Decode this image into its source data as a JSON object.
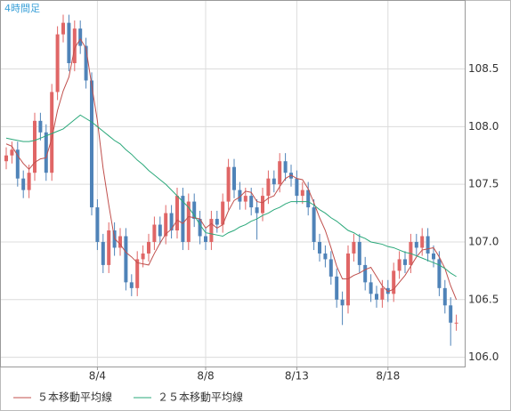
{
  "chart_data": {
    "type": "candlestick",
    "title": "4時間足",
    "categories": [
      null,
      null,
      null,
      null,
      null,
      null,
      null,
      null,
      null,
      null,
      null,
      null,
      null,
      null,
      null,
      null,
      "8/4",
      null,
      null,
      null,
      null,
      null,
      null,
      null,
      null,
      null,
      null,
      null,
      null,
      null,
      null,
      null,
      null,
      null,
      null,
      "8/8",
      null,
      null,
      null,
      null,
      null,
      null,
      null,
      null,
      null,
      null,
      null,
      null,
      null,
      null,
      null,
      "8/13",
      null,
      null,
      null,
      null,
      null,
      null,
      null,
      null,
      null,
      null,
      null,
      null,
      null,
      null,
      null,
      "8/18",
      null,
      null,
      null,
      null,
      null,
      null,
      null,
      null,
      null,
      null,
      null,
      null
    ],
    "open": [
      107.7,
      107.75,
      107.8,
      107.55,
      107.45,
      107.6,
      108.05,
      107.95,
      107.6,
      108.3,
      108.8,
      108.9,
      108.55,
      108.85,
      108.7,
      108.4,
      107.3,
      107.0,
      106.8,
      107.1,
      106.95,
      107.05,
      106.65,
      106.6,
      106.85,
      106.9,
      107.0,
      107.15,
      107.05,
      107.25,
      107.1,
      107.4,
      107.0,
      107.35,
      107.2,
      107.05,
      107.0,
      107.2,
      107.15,
      107.35,
      107.65,
      107.45,
      107.35,
      107.4,
      107.3,
      107.25,
      107.4,
      107.55,
      107.5,
      107.7,
      107.6,
      107.55,
      107.4,
      107.45,
      107.3,
      107.0,
      106.9,
      106.85,
      106.7,
      106.5,
      106.45,
      106.9,
      107.0,
      106.8,
      106.65,
      106.55,
      106.5,
      106.6,
      106.55,
      106.75,
      106.85,
      106.8,
      107.0,
      106.95,
      107.05,
      106.9,
      106.85,
      106.6,
      106.45,
      106.3
    ],
    "high": [
      107.82,
      107.87,
      107.87,
      107.62,
      107.67,
      108.12,
      108.12,
      108.02,
      108.37,
      108.87,
      108.97,
      108.97,
      108.92,
      108.92,
      108.77,
      108.47,
      107.37,
      107.07,
      107.17,
      107.17,
      107.12,
      107.12,
      106.72,
      106.92,
      106.97,
      107.07,
      107.22,
      107.22,
      107.32,
      107.32,
      107.47,
      107.47,
      107.42,
      107.42,
      107.27,
      107.12,
      107.27,
      107.27,
      107.42,
      107.72,
      107.72,
      107.52,
      107.47,
      107.47,
      107.37,
      107.47,
      107.62,
      107.62,
      107.77,
      107.77,
      107.67,
      107.62,
      107.52,
      107.52,
      107.37,
      107.07,
      106.97,
      106.92,
      106.77,
      106.57,
      106.97,
      107.07,
      107.07,
      106.87,
      106.72,
      106.62,
      106.67,
      106.67,
      106.82,
      106.92,
      106.92,
      107.07,
      107.07,
      107.12,
      107.12,
      106.97,
      106.92,
      106.67,
      106.52,
      106.37
    ],
    "low": [
      107.63,
      107.68,
      107.48,
      107.38,
      107.38,
      107.53,
      107.88,
      107.53,
      107.53,
      108.23,
      108.73,
      108.48,
      108.48,
      108.63,
      108.33,
      107.23,
      106.93,
      106.73,
      106.73,
      106.88,
      106.88,
      106.58,
      106.53,
      106.53,
      106.78,
      106.83,
      106.93,
      106.98,
      106.98,
      107.03,
      107.03,
      106.93,
      106.93,
      107.13,
      106.98,
      106.93,
      106.93,
      107.08,
      107.08,
      107.28,
      107.38,
      107.28,
      107.28,
      107.23,
      107.02,
      107.18,
      107.33,
      107.43,
      107.43,
      107.53,
      107.48,
      107.33,
      107.33,
      107.23,
      106.93,
      106.83,
      106.78,
      106.63,
      106.43,
      106.28,
      106.38,
      106.83,
      106.73,
      106.58,
      106.48,
      106.43,
      106.43,
      106.48,
      106.48,
      106.68,
      106.73,
      106.73,
      106.88,
      106.88,
      106.83,
      106.78,
      106.53,
      106.38,
      106.1,
      106.23
    ],
    "close": [
      107.75,
      107.8,
      107.55,
      107.45,
      107.6,
      108.05,
      107.95,
      107.6,
      108.3,
      108.8,
      108.9,
      108.55,
      108.85,
      108.7,
      108.4,
      107.3,
      107.0,
      106.8,
      107.1,
      106.95,
      107.05,
      106.65,
      106.6,
      106.85,
      106.9,
      107.0,
      107.15,
      107.05,
      107.25,
      107.1,
      107.4,
      107.0,
      107.35,
      107.2,
      107.05,
      107.0,
      107.2,
      107.15,
      107.35,
      107.65,
      107.45,
      107.35,
      107.4,
      107.3,
      107.25,
      107.4,
      107.55,
      107.5,
      107.7,
      107.6,
      107.55,
      107.4,
      107.45,
      107.3,
      107.0,
      106.9,
      106.85,
      106.7,
      106.5,
      106.45,
      106.9,
      107.0,
      106.8,
      106.65,
      106.55,
      106.5,
      106.6,
      106.55,
      106.75,
      106.85,
      106.8,
      107.0,
      106.95,
      107.05,
      106.9,
      106.85,
      106.6,
      106.45,
      106.3,
      106.3
    ],
    "up_color": "#e06666",
    "down_color": "#4f83b8",
    "series": [
      {
        "name": "５本移動平均線",
        "color": "#c0504d",
        "values": [
          107.85,
          107.83,
          107.75,
          107.68,
          107.63,
          107.69,
          107.72,
          107.73,
          107.9,
          108.14,
          108.31,
          108.43,
          108.68,
          108.76,
          108.68,
          108.36,
          108.05,
          107.64,
          107.32,
          107.03,
          106.98,
          106.91,
          106.87,
          106.82,
          106.81,
          106.8,
          106.9,
          106.99,
          107.07,
          107.11,
          107.19,
          107.16,
          107.22,
          107.21,
          107.2,
          107.12,
          107.16,
          107.12,
          107.15,
          107.27,
          107.36,
          107.39,
          107.44,
          107.43,
          107.35,
          107.34,
          107.38,
          107.4,
          107.48,
          107.55,
          107.58,
          107.55,
          107.54,
          107.46,
          107.34,
          107.21,
          107.1,
          106.95,
          106.79,
          106.68,
          106.68,
          106.71,
          106.73,
          106.76,
          106.78,
          106.7,
          106.62,
          106.57,
          106.59,
          106.65,
          106.71,
          106.79,
          106.87,
          106.93,
          106.94,
          106.95,
          106.87,
          106.77,
          106.62,
          106.5
        ]
      },
      {
        "name": "２５本移動平均線",
        "color": "#2aa87a",
        "values": [
          107.9,
          107.89,
          107.88,
          107.87,
          107.87,
          107.88,
          107.9,
          107.92,
          107.94,
          107.96,
          107.98,
          108.02,
          108.06,
          108.1,
          108.07,
          108.04,
          108.0,
          107.96,
          107.92,
          107.88,
          107.85,
          107.8,
          107.76,
          107.71,
          107.67,
          107.62,
          107.58,
          107.54,
          107.5,
          107.45,
          107.4,
          107.35,
          107.3,
          107.23,
          107.15,
          107.08,
          107.07,
          107.06,
          107.05,
          107.08,
          107.1,
          107.13,
          107.15,
          107.18,
          107.2,
          107.23,
          107.25,
          107.28,
          107.3,
          107.33,
          107.35,
          107.35,
          107.35,
          107.35,
          107.32,
          107.28,
          107.25,
          107.21,
          107.18,
          107.14,
          107.1,
          107.08,
          107.05,
          107.03,
          107.0,
          106.99,
          106.98,
          106.96,
          106.95,
          106.93,
          106.91,
          106.9,
          106.88,
          106.86,
          106.84,
          106.82,
          106.8,
          106.77,
          106.73,
          106.7
        ]
      }
    ],
    "ylim": [
      105.92,
      109.09
    ],
    "yticks": [
      {
        "value": 106,
        "label": "106.0"
      },
      106.5,
      {
        "value": 107,
        "label": "107.0"
      },
      107.5,
      {
        "value": 108,
        "label": "108.0"
      },
      108.5
    ],
    "grid": true
  }
}
